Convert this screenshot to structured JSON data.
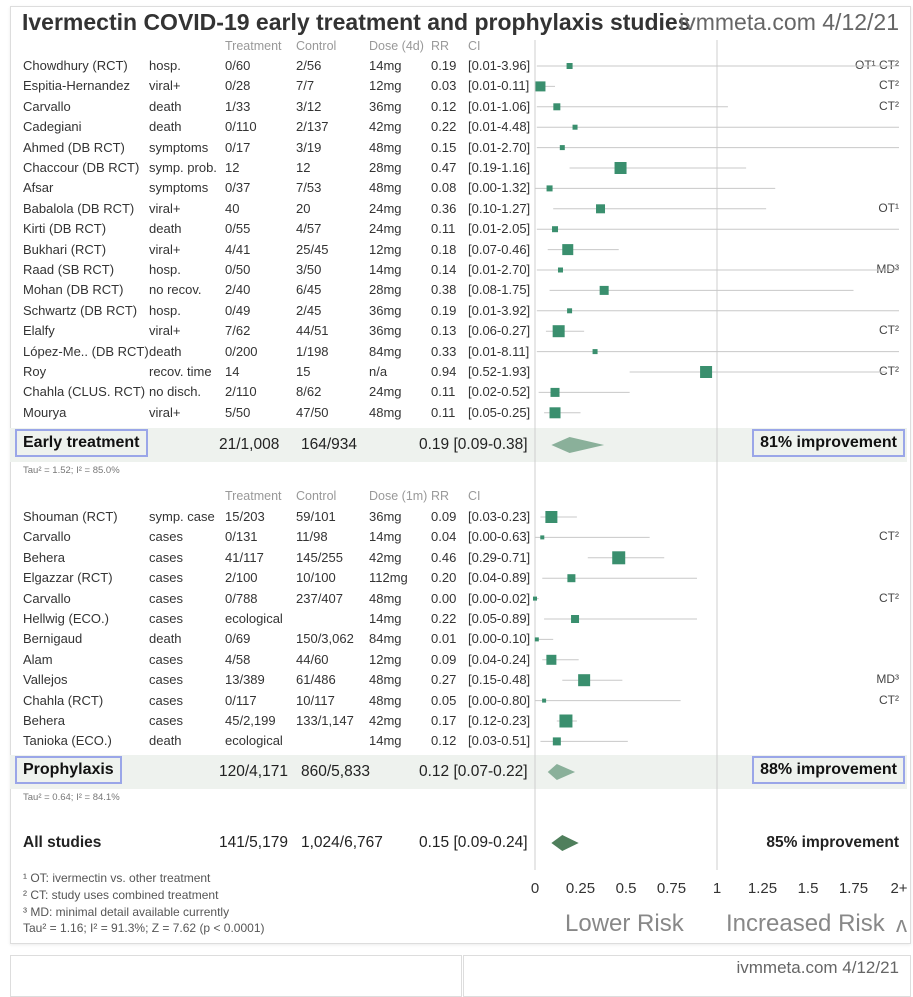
{
  "title": "Ivermectin COVID-19 early treatment and prophylaxis studies",
  "brand": "ivmmeta.com 4/12/21",
  "early_headers": {
    "treatment": "Treatment",
    "control": "Control",
    "dose": "Dose (4d)",
    "rr": "RR",
    "ci": "CI"
  },
  "proph_headers": {
    "treatment": "Treatment",
    "control": "Control",
    "dose": "Dose (1m)",
    "rr": "RR",
    "ci": "CI"
  },
  "early_studies": [
    {
      "name": "Chowdhury (RCT)",
      "outcome": "hosp.",
      "treatment": "0/60",
      "control": "2/56",
      "dose": "14mg",
      "rr_text": "0.19",
      "ci_text": "[0.01-3.96]",
      "rr": 0.19,
      "lo": 0.01,
      "hi": 3.96,
      "w": 6,
      "note": "OT¹ CT²"
    },
    {
      "name": "Espitia-Hernandez",
      "outcome": "viral+",
      "treatment": "0/28",
      "control": "7/7",
      "dose": "12mg",
      "rr_text": "0.03",
      "ci_text": "[0.01-0.11]",
      "rr": 0.03,
      "lo": 0.01,
      "hi": 0.11,
      "w": 10,
      "note": "CT²"
    },
    {
      "name": "Carvallo",
      "outcome": "death",
      "treatment": "1/33",
      "control": "3/12",
      "dose": "36mg",
      "rr_text": "0.12",
      "ci_text": "[0.01-1.06]",
      "rr": 0.12,
      "lo": 0.01,
      "hi": 1.06,
      "w": 7,
      "note": "CT²"
    },
    {
      "name": "Cadegiani",
      "outcome": "death",
      "treatment": "0/110",
      "control": "2/137",
      "dose": "42mg",
      "rr_text": "0.22",
      "ci_text": "[0.01-4.48]",
      "rr": 0.22,
      "lo": 0.01,
      "hi": 4.48,
      "w": 5,
      "note": ""
    },
    {
      "name": "Ahmed (DB RCT)",
      "outcome": "symptoms",
      "treatment": "0/17",
      "control": "3/19",
      "dose": "48mg",
      "rr_text": "0.15",
      "ci_text": "[0.01-2.70]",
      "rr": 0.15,
      "lo": 0.01,
      "hi": 2.7,
      "w": 5,
      "note": ""
    },
    {
      "name": "Chaccour (DB RCT)",
      "outcome": "symp. prob.",
      "treatment": "12",
      "control": "12",
      "dose": "28mg",
      "rr_text": "0.47",
      "ci_text": "[0.19-1.16]",
      "rr": 0.47,
      "lo": 0.19,
      "hi": 1.16,
      "w": 12,
      "note": ""
    },
    {
      "name": "Afsar",
      "outcome": "symptoms",
      "treatment": "0/37",
      "control": "7/53",
      "dose": "48mg",
      "rr_text": "0.08",
      "ci_text": "[0.00-1.32]",
      "rr": 0.08,
      "lo": 0.0,
      "hi": 1.32,
      "w": 6,
      "note": ""
    },
    {
      "name": "Babalola (DB RCT)",
      "outcome": "viral+",
      "treatment": "40",
      "control": "20",
      "dose": "24mg",
      "rr_text": "0.36",
      "ci_text": "[0.10-1.27]",
      "rr": 0.36,
      "lo": 0.1,
      "hi": 1.27,
      "w": 9,
      "note": "OT¹"
    },
    {
      "name": "Kirti (DB RCT)",
      "outcome": "death",
      "treatment": "0/55",
      "control": "4/57",
      "dose": "24mg",
      "rr_text": "0.11",
      "ci_text": "[0.01-2.05]",
      "rr": 0.11,
      "lo": 0.01,
      "hi": 2.05,
      "w": 6,
      "note": ""
    },
    {
      "name": "Bukhari (RCT)",
      "outcome": "viral+",
      "treatment": "4/41",
      "control": "25/45",
      "dose": "12mg",
      "rr_text": "0.18",
      "ci_text": "[0.07-0.46]",
      "rr": 0.18,
      "lo": 0.07,
      "hi": 0.46,
      "w": 11,
      "note": ""
    },
    {
      "name": "Raad (SB RCT)",
      "outcome": "hosp.",
      "treatment": "0/50",
      "control": "3/50",
      "dose": "14mg",
      "rr_text": "0.14",
      "ci_text": "[0.01-2.70]",
      "rr": 0.14,
      "lo": 0.01,
      "hi": 2.7,
      "w": 5,
      "note": "MD³"
    },
    {
      "name": "Mohan (DB RCT)",
      "outcome": "no recov.",
      "treatment": "2/40",
      "control": "6/45",
      "dose": "28mg",
      "rr_text": "0.38",
      "ci_text": "[0.08-1.75]",
      "rr": 0.38,
      "lo": 0.08,
      "hi": 1.75,
      "w": 9,
      "note": ""
    },
    {
      "name": "Schwartz (DB RCT)",
      "outcome": "hosp.",
      "treatment": "0/49",
      "control": "2/45",
      "dose": "36mg",
      "rr_text": "0.19",
      "ci_text": "[0.01-3.92]",
      "rr": 0.19,
      "lo": 0.01,
      "hi": 3.92,
      "w": 5,
      "note": ""
    },
    {
      "name": "Elalfy",
      "outcome": "viral+",
      "treatment": "7/62",
      "control": "44/51",
      "dose": "36mg",
      "rr_text": "0.13",
      "ci_text": "[0.06-0.27]",
      "rr": 0.13,
      "lo": 0.06,
      "hi": 0.27,
      "w": 12,
      "note": "CT²"
    },
    {
      "name": "López-Me.. (DB RCT)",
      "outcome": "death",
      "treatment": "0/200",
      "control": "1/198",
      "dose": "84mg",
      "rr_text": "0.33",
      "ci_text": "[0.01-8.11]",
      "rr": 0.33,
      "lo": 0.01,
      "hi": 8.11,
      "w": 5,
      "note": ""
    },
    {
      "name": "Roy",
      "outcome": "recov. time",
      "treatment": "14",
      "control": "15",
      "dose": "n/a",
      "rr_text": "0.94",
      "ci_text": "[0.52-1.93]",
      "rr": 0.94,
      "lo": 0.52,
      "hi": 1.93,
      "w": 12,
      "note": "CT²"
    },
    {
      "name": "Chahla (CLUS. RCT)",
      "outcome": "no disch.",
      "treatment": "2/110",
      "control": "8/62",
      "dose": "24mg",
      "rr_text": "0.11",
      "ci_text": "[0.02-0.52]",
      "rr": 0.11,
      "lo": 0.02,
      "hi": 0.52,
      "w": 9,
      "note": ""
    },
    {
      "name": "Mourya",
      "outcome": "viral+",
      "treatment": "5/50",
      "control": "47/50",
      "dose": "48mg",
      "rr_text": "0.11",
      "ci_text": "[0.05-0.25]",
      "rr": 0.11,
      "lo": 0.05,
      "hi": 0.25,
      "w": 11,
      "note": ""
    }
  ],
  "early_summary": {
    "label": "Early treatment",
    "treatment": "21/1,008",
    "control": "164/934",
    "rr_text": "0.19 [0.09-0.38]",
    "rr": 0.19,
    "lo": 0.09,
    "hi": 0.38,
    "improvement": "81% improvement",
    "tau": "Tau² = 1.52; I² = 85.0%"
  },
  "proph_studies": [
    {
      "name": "Shouman (RCT)",
      "outcome": "symp. case",
      "treatment": "15/203",
      "control": "59/101",
      "dose": "36mg",
      "rr_text": "0.09",
      "ci_text": "[0.03-0.23]",
      "rr": 0.09,
      "lo": 0.03,
      "hi": 0.23,
      "w": 12,
      "note": ""
    },
    {
      "name": "Carvallo",
      "outcome": "cases",
      "treatment": "0/131",
      "control": "11/98",
      "dose": "14mg",
      "rr_text": "0.04",
      "ci_text": "[0.00-0.63]",
      "rr": 0.04,
      "lo": 0.0,
      "hi": 0.63,
      "w": 4,
      "note": "CT²"
    },
    {
      "name": "Behera",
      "outcome": "cases",
      "treatment": "41/117",
      "control": "145/255",
      "dose": "42mg",
      "rr_text": "0.46",
      "ci_text": "[0.29-0.71]",
      "rr": 0.46,
      "lo": 0.29,
      "hi": 0.71,
      "w": 13,
      "note": ""
    },
    {
      "name": "Elgazzar (RCT)",
      "outcome": "cases",
      "treatment": "2/100",
      "control": "10/100",
      "dose": "112mg",
      "rr_text": "0.20",
      "ci_text": "[0.04-0.89]",
      "rr": 0.2,
      "lo": 0.04,
      "hi": 0.89,
      "w": 8,
      "note": ""
    },
    {
      "name": "Carvallo",
      "outcome": "cases",
      "treatment": "0/788",
      "control": "237/407",
      "dose": "48mg",
      "rr_text": "0.00",
      "ci_text": "[0.00-0.02]",
      "rr": 0.0,
      "lo": 0.0,
      "hi": 0.02,
      "w": 4,
      "note": "CT²"
    },
    {
      "name": "Hellwig (ECO.)",
      "outcome": "cases",
      "treatment": "ecological",
      "control": "",
      "dose": "14mg",
      "rr_text": "0.22",
      "ci_text": "[0.05-0.89]",
      "rr": 0.22,
      "lo": 0.05,
      "hi": 0.89,
      "w": 8,
      "note": ""
    },
    {
      "name": "Bernigaud",
      "outcome": "death",
      "treatment": "0/69",
      "control": "150/3,062",
      "dose": "84mg",
      "rr_text": "0.01",
      "ci_text": "[0.00-0.10]",
      "rr": 0.01,
      "lo": 0.0,
      "hi": 0.1,
      "w": 4,
      "note": ""
    },
    {
      "name": "Alam",
      "outcome": "cases",
      "treatment": "4/58",
      "control": "44/60",
      "dose": "12mg",
      "rr_text": "0.09",
      "ci_text": "[0.04-0.24]",
      "rr": 0.09,
      "lo": 0.04,
      "hi": 0.24,
      "w": 10,
      "note": ""
    },
    {
      "name": "Vallejos",
      "outcome": "cases",
      "treatment": "13/389",
      "control": "61/486",
      "dose": "48mg",
      "rr_text": "0.27",
      "ci_text": "[0.15-0.48]",
      "rr": 0.27,
      "lo": 0.15,
      "hi": 0.48,
      "w": 12,
      "note": "MD³"
    },
    {
      "name": "Chahla (RCT)",
      "outcome": "cases",
      "treatment": "0/117",
      "control": "10/117",
      "dose": "48mg",
      "rr_text": "0.05",
      "ci_text": "[0.00-0.80]",
      "rr": 0.05,
      "lo": 0.0,
      "hi": 0.8,
      "w": 4,
      "note": "CT²"
    },
    {
      "name": "Behera",
      "outcome": "cases",
      "treatment": "45/2,199",
      "control": "133/1,147",
      "dose": "42mg",
      "rr_text": "0.17",
      "ci_text": "[0.12-0.23]",
      "rr": 0.17,
      "lo": 0.12,
      "hi": 0.23,
      "w": 13,
      "note": ""
    },
    {
      "name": "Tanioka (ECO.)",
      "outcome": "death",
      "treatment": "ecological",
      "control": "",
      "dose": "14mg",
      "rr_text": "0.12",
      "ci_text": "[0.03-0.51]",
      "rr": 0.12,
      "lo": 0.03,
      "hi": 0.51,
      "w": 8,
      "note": ""
    }
  ],
  "proph_summary": {
    "label": "Prophylaxis",
    "treatment": "120/4,171",
    "control": "860/5,833",
    "rr_text": "0.12 [0.07-0.22]",
    "rr": 0.12,
    "lo": 0.07,
    "hi": 0.22,
    "improvement": "88% improvement",
    "tau": "Tau² = 0.64; I² = 84.1%"
  },
  "all_summary": {
    "label": "All studies",
    "treatment": "141/5,179",
    "control": "1,024/6,767",
    "rr_text": "0.15 [0.09-0.24]",
    "rr": 0.15,
    "lo": 0.09,
    "hi": 0.24,
    "improvement": "85% improvement"
  },
  "footnotes": [
    "¹ OT: ivermectin vs. other treatment",
    "² CT: study uses combined treatment",
    "³ MD: minimal detail available currently",
    "Tau² = 1.16; I² = 91.3%; Z = 7.62 (p < 0.0001)"
  ],
  "chart_data": {
    "type": "scatter",
    "title": "Ivermectin COVID-19 early treatment and prophylaxis studies",
    "xlabel": "RR",
    "xlim": [
      0,
      2
    ],
    "x_ticks": [
      "0",
      "0.25",
      "0.5",
      "0.75",
      "1",
      "1.25",
      "1.5",
      "1.75",
      "2+"
    ],
    "x_tick_values": [
      0,
      0.25,
      0.5,
      0.75,
      1,
      1.25,
      1.5,
      1.75,
      2
    ],
    "lower_label": "Lower Risk",
    "higher_label": "Increased Risk",
    "grid": false,
    "marker_color": "#3a8f6e",
    "summary_color": "#8ab09a",
    "all_color": "#4f7f5c"
  },
  "bottom": {
    "brand": "ivmmeta.com 4/12/21"
  },
  "logo": "ᴧ"
}
